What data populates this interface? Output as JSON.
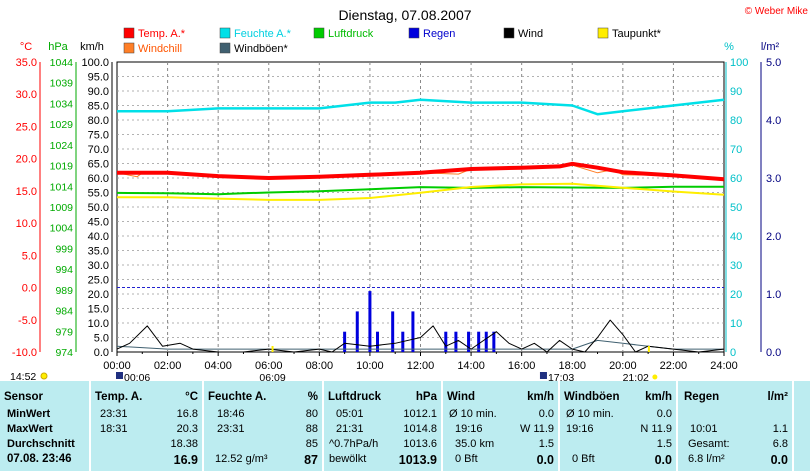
{
  "title": "Dienstag, 07.08.2007",
  "copyright": "© Weber Mike",
  "axis_units": {
    "temp": "°C",
    "pressure": "hPa",
    "wind": "km/h",
    "humidity": "%",
    "rain": "l/m²"
  },
  "legend": [
    {
      "label": "Temp. A.*",
      "color": "#ff0000"
    },
    {
      "label": "Feuchte A.*",
      "color": "#00e0e8"
    },
    {
      "label": "Luftdruck",
      "color": "#00cc00"
    },
    {
      "label": "Regen",
      "color": "#0000dd"
    },
    {
      "label": "Wind",
      "color": "#000000"
    },
    {
      "label": "Taupunkt*",
      "color": "#ffee00"
    },
    {
      "label": "Windchill",
      "color": "#ff7f27"
    },
    {
      "label": "Windböen*",
      "color": "#406070"
    }
  ],
  "chart_data": {
    "type": "line",
    "title": "Dienstag, 07.08.2007",
    "x": {
      "label": "",
      "min": "00:00",
      "max": "24:00",
      "ticks": [
        "00:00",
        "02:00",
        "04:00",
        "06:00",
        "08:00",
        "10:00",
        "12:00",
        "14:00",
        "16:00",
        "18:00",
        "20:00",
        "22:00",
        "24:00"
      ]
    },
    "axes": {
      "temp_c": {
        "min": -10,
        "max": 35,
        "ticks": [
          "35.0",
          "30.0",
          "25.0",
          "20.0",
          "15.0",
          "10.0",
          "5.0",
          "0.0",
          "-5.0",
          "-10.0"
        ],
        "color": "#ff0000"
      },
      "pressure_hpa": {
        "min": 974,
        "max": 1044,
        "ticks": [
          "1044",
          "1039",
          "1034",
          "1029",
          "1024",
          "1019",
          "1014",
          "1009",
          "1004",
          "999",
          "994",
          "989",
          "984",
          "979",
          "974"
        ],
        "color": "#00aa00"
      },
      "wind_kmh": {
        "min": 0,
        "max": 100,
        "ticks": [
          "100.0",
          "95.0",
          "90.0",
          "85.0",
          "80.0",
          "75.0",
          "70.0",
          "65.0",
          "60.0",
          "55.0",
          "50.0",
          "45.0",
          "40.0",
          "35.0",
          "30.0",
          "25.0",
          "20.0",
          "15.0",
          "10.0",
          "5.0",
          "0.0"
        ],
        "color": "#000000"
      },
      "humidity_pct": {
        "min": 0,
        "max": 100,
        "ticks": [
          "100",
          "90",
          "80",
          "70",
          "60",
          "50",
          "40",
          "30",
          "20",
          "10",
          "0"
        ],
        "color": "#00c0c8"
      },
      "rain_lm2": {
        "min": 0,
        "max": 5,
        "ticks": [
          "5.0",
          "4.0",
          "3.0",
          "2.0",
          "1.0",
          "0.0"
        ],
        "color": "#000080"
      }
    },
    "series": [
      {
        "name": "Temp. A.*",
        "axis": "temp_c",
        "color": "#ff0000",
        "x": [
          0,
          2,
          4,
          6,
          8,
          10,
          12,
          14,
          16,
          17.5,
          18,
          19,
          20,
          22,
          24
        ],
        "y": [
          17.8,
          17.8,
          17.3,
          17.0,
          17.2,
          17.5,
          17.8,
          18.4,
          18.6,
          18.8,
          19.2,
          18.6,
          17.9,
          17.4,
          16.8
        ]
      },
      {
        "name": "Windchill",
        "axis": "temp_c",
        "color": "#ff7f27",
        "x": [
          0,
          0.8,
          1,
          2,
          4,
          6,
          8,
          10,
          12,
          13.5,
          14,
          16,
          18,
          19,
          19.6,
          20,
          22,
          24
        ],
        "y": [
          17.8,
          17.2,
          17.8,
          17.8,
          17.3,
          17.0,
          17.2,
          17.5,
          17.8,
          17.6,
          18.4,
          18.6,
          19.0,
          17.8,
          18.3,
          17.5,
          17.4,
          16.8
        ]
      },
      {
        "name": "Feuchte A.*",
        "axis": "humidity_pct",
        "color": "#00e0e8",
        "x": [
          0,
          2,
          4,
          6,
          8,
          10,
          11,
          12,
          14,
          16,
          18,
          19,
          20,
          22,
          24
        ],
        "y": [
          83,
          83,
          84,
          84,
          84,
          86,
          86,
          87,
          86,
          86,
          85,
          82,
          83,
          85,
          87
        ]
      },
      {
        "name": "Luftdruck",
        "axis": "pressure_hpa",
        "color": "#00cc00",
        "x": [
          0,
          2,
          4,
          5,
          6,
          8,
          10,
          12,
          14,
          16,
          18,
          20,
          22,
          24
        ],
        "y": [
          1012.4,
          1012.3,
          1012.1,
          1012.3,
          1012.5,
          1012.8,
          1013.3,
          1013.8,
          1013.6,
          1013.8,
          1013.7,
          1013.6,
          1013.9,
          1013.9
        ]
      },
      {
        "name": "Taupunkt*",
        "axis": "temp_c",
        "color": "#ffee00",
        "x": [
          0,
          2,
          4,
          6,
          8,
          10,
          12,
          14,
          16,
          18,
          20,
          22,
          24
        ],
        "y": [
          14.0,
          14.0,
          13.8,
          13.6,
          13.6,
          13.9,
          14.7,
          15.6,
          16.0,
          16.1,
          15.5,
          14.9,
          14.4
        ]
      },
      {
        "name": "Wind",
        "axis": "wind_kmh",
        "color": "#000000",
        "x": [
          0,
          0.5,
          1.2,
          1.8,
          2.5,
          3,
          4,
          5,
          6,
          7,
          8,
          8.5,
          9,
          10,
          11,
          12,
          12.5,
          13,
          13.5,
          14,
          14.5,
          15,
          15.5,
          16,
          16.5,
          17,
          17.5,
          18,
          18.5,
          19,
          19.5,
          20,
          20.5,
          21,
          22,
          23,
          24
        ],
        "y": [
          1,
          3,
          9,
          2,
          3,
          1,
          0,
          0,
          1,
          0,
          1,
          0,
          3,
          2,
          3,
          5,
          9,
          2,
          4,
          1,
          4,
          7,
          3,
          1,
          3,
          0,
          4,
          1,
          0,
          5,
          11,
          6,
          0,
          2,
          1,
          0,
          1
        ]
      },
      {
        "name": "Windböen*",
        "axis": "wind_kmh",
        "color": "#406070",
        "x": [
          0,
          2,
          4,
          6,
          8,
          10,
          12,
          14,
          16,
          18,
          19,
          20,
          22,
          24
        ],
        "y": [
          2,
          1,
          1,
          1,
          1,
          1,
          1,
          1,
          1,
          1,
          4,
          3,
          1,
          1
        ]
      },
      {
        "name": "Regen",
        "axis": "rain_lm2",
        "type": "bar",
        "color": "#0000dd",
        "x": [
          9.0,
          9.5,
          10.0,
          10.3,
          10.9,
          11.3,
          11.7,
          13.0,
          13.4,
          13.9,
          14.3,
          14.6,
          14.9
        ],
        "y": [
          0.35,
          0.7,
          1.05,
          0.35,
          0.7,
          0.35,
          0.7,
          0.35,
          0.35,
          0.35,
          0.35,
          0.35,
          0.35
        ]
      }
    ],
    "reference_lines": [
      {
        "axis": "temp_c",
        "y": 0.0,
        "color": "#2020d0",
        "style": "dashed"
      }
    ],
    "markers": {
      "left_time": "14:52",
      "sunrise_top": "00:06",
      "sunset_top": "17:03",
      "sunrise_bottom": "06:09",
      "sunset_bottom": "21:02"
    },
    "grid": true
  },
  "stats": {
    "sensor": {
      "header": "Sensor",
      "rows": [
        "MinWert",
        "MaxWert",
        "Durchschnitt",
        "07.08. 23:46"
      ]
    },
    "temp": {
      "header": "Temp. A.",
      "unit": "°C",
      "min_time": "23:31",
      "min_val": "16.8",
      "max_time": "18:31",
      "max_val": "20.3",
      "avg_val": "18.38",
      "cur_val": "16.9"
    },
    "hum": {
      "header": "Feuchte A.",
      "unit": "%",
      "min_time": "18:46",
      "min_val": "80",
      "max_time": "23:31",
      "max_val": "88",
      "avg_val": "85",
      "cur_left": "12.52 g/m³",
      "cur_val": "87"
    },
    "press": {
      "header": "Luftdruck",
      "unit": "hPa",
      "min_time": "05:01",
      "min_val": "1012.1",
      "max_time": "21:31",
      "max_val": "1014.8",
      "avg_left": "^0.7hPa/h",
      "avg_val": "1013.6",
      "cur_left": "bewölkt",
      "cur_val": "1013.9"
    },
    "wind": {
      "header": "Wind",
      "unit": "km/h",
      "r1_left": "Ø 10 min.",
      "r1_val": "0.0",
      "r2_left": "19:16",
      "r2_val": "W 11.9",
      "r3_left": "35.0 km",
      "r3_val": "1.5",
      "r4_left": "0 Bft",
      "r4_val": "0.0"
    },
    "gust": {
      "header": "Windböen",
      "unit": "km/h",
      "r1_left": "Ø 10 min.",
      "r1_val": "0.0",
      "r2_left": "19:16",
      "r2_val": "N 11.9",
      "r3_val": "1.5",
      "r4_left": "0 Bft",
      "r4_val": "0.0"
    },
    "rain": {
      "header": "Regen",
      "unit": "l/m²",
      "r2_left": "10:01",
      "r2_val": "1.1",
      "r3_left": "Gesamt:",
      "r3_val": "6.8",
      "r4_left": "6.8 l/m²",
      "r4_val": "0.0"
    }
  }
}
